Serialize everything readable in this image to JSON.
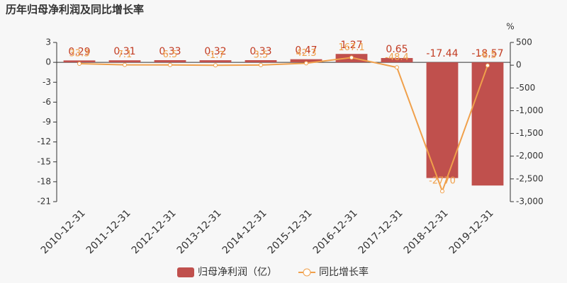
{
  "chart_data": {
    "type": "combo",
    "title": "历年归母净利润及同比增长率",
    "y2_unit": "%",
    "categories": [
      "2010-12-31",
      "2011-12-31",
      "2012-12-31",
      "2013-12-31",
      "2014-12-31",
      "2015-12-31",
      "2016-12-31",
      "2017-12-31",
      "2018-12-31",
      "2019-12-31"
    ],
    "series": [
      {
        "name": "归母净利润（亿）",
        "type": "bar",
        "color": "#c0504d",
        "values": [
          0.29,
          0.31,
          0.33,
          0.32,
          0.33,
          0.47,
          1.27,
          0.65,
          -17.44,
          -18.57
        ]
      },
      {
        "name": "同比增长率",
        "type": "line",
        "axis": "y2",
        "color": "#f0a04b",
        "values": [
          33.3,
          7.1,
          6.5,
          -1.7,
          3.5,
          42.3,
          167.1,
          -48.4,
          -2770,
          -6.5
        ]
      }
    ],
    "ylim": [
      -21,
      3
    ],
    "yticks": [
      3,
      0,
      -3,
      -6,
      -9,
      -12,
      -15,
      -18,
      -21
    ],
    "y2lim": [
      -3000,
      500
    ],
    "y2ticks": [
      500,
      0,
      -500,
      {
        "value": -1000,
        "label": "-1,000"
      },
      {
        "value": -1500,
        "label": "-1,500"
      },
      {
        "value": -2000,
        "label": "-2,000"
      },
      {
        "value": -2500,
        "label": "-2,500"
      },
      {
        "value": -3000,
        "label": "-3,000"
      }
    ],
    "grid": false
  }
}
